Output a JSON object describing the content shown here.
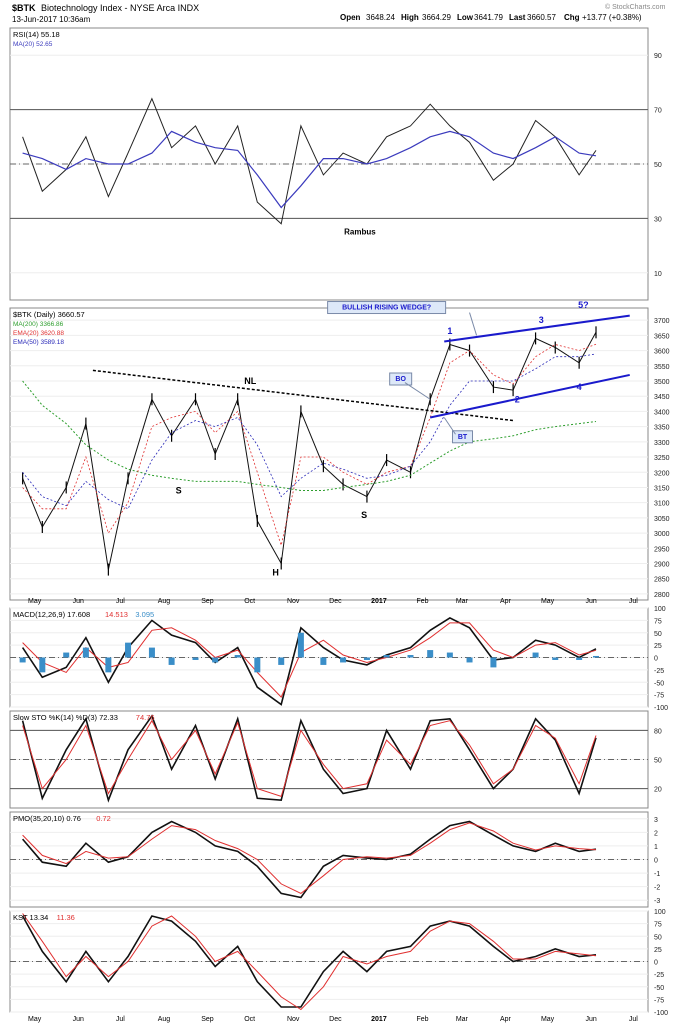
{
  "header": {
    "symbol": "$BTK",
    "name": "Biotechnology Index - NYSE Arca INDX",
    "date": "13-Jun-2017 10:36am",
    "open_label": "Open",
    "open": "3648.24",
    "high_label": "High",
    "high": "3664.29",
    "low_label": "Low",
    "low": "3641.79",
    "close_label": "Last",
    "close": "3660.57",
    "chg_label": "Chg",
    "chg": "+13.77 (+0.38%)",
    "watermark": "© StockCharts.com"
  },
  "colors": {
    "price": "#000000",
    "ma200": "#2e9e2e",
    "ema20": "#e03030",
    "ema50": "#2a2ab8",
    "rsi_ma": "#3b3bbd",
    "macd_hist": "#3a8ec8",
    "annot_blue": "#1a1acc"
  },
  "chart_data": [
    {
      "type": "line",
      "panel": "rsi",
      "legend": [
        "RSI(14) 55.18",
        "MA(20) 52.65"
      ],
      "ylim": [
        0,
        100
      ],
      "ticks": [
        10,
        30,
        50,
        70,
        90
      ],
      "ref_lines": [
        70,
        50,
        30
      ],
      "x": [
        "2016-05-01",
        "2016-05-15",
        "2016-06-01",
        "2016-06-15",
        "2016-07-01",
        "2016-07-15",
        "2016-08-01",
        "2016-08-15",
        "2016-09-01",
        "2016-09-15",
        "2016-10-01",
        "2016-10-15",
        "2016-11-01",
        "2016-11-15",
        "2016-12-01",
        "2016-12-15",
        "2017-01-01",
        "2017-01-15",
        "2017-02-01",
        "2017-02-15",
        "2017-03-01",
        "2017-03-15",
        "2017-04-01",
        "2017-04-15",
        "2017-05-01",
        "2017-05-15",
        "2017-06-01",
        "2017-06-13"
      ],
      "series": [
        {
          "name": "RSI(14)",
          "values": [
            60,
            40,
            48,
            60,
            38,
            54,
            74,
            56,
            64,
            50,
            64,
            36,
            28,
            64,
            46,
            54,
            50,
            60,
            64,
            72,
            64,
            58,
            44,
            50,
            66,
            60,
            46,
            55
          ]
        },
        {
          "name": "MA(20)",
          "values": [
            54,
            52,
            48,
            52,
            50,
            50,
            54,
            62,
            58,
            56,
            55,
            46,
            34,
            42,
            52,
            52,
            50,
            52,
            56,
            60,
            62,
            60,
            54,
            52,
            56,
            60,
            54,
            53
          ]
        }
      ],
      "annotation": "Rambus"
    },
    {
      "type": "line",
      "panel": "price",
      "legend": [
        "$BTK (Daily) 3660.57",
        "MA(200) 3366.86",
        "EMA(20) 3620.88",
        "EMA(50) 3589.18"
      ],
      "ylim": [
        2780,
        3740
      ],
      "ticks": [
        2800,
        2850,
        2900,
        2950,
        3000,
        3050,
        3100,
        3150,
        3200,
        3250,
        3300,
        3350,
        3400,
        3450,
        3500,
        3550,
        3600,
        3650,
        3700
      ],
      "x": [
        "2016-05-01",
        "2016-05-15",
        "2016-06-01",
        "2016-06-15",
        "2016-07-01",
        "2016-07-15",
        "2016-08-01",
        "2016-08-15",
        "2016-09-01",
        "2016-09-15",
        "2016-10-01",
        "2016-10-15",
        "2016-11-01",
        "2016-11-15",
        "2016-12-01",
        "2016-12-15",
        "2017-01-01",
        "2017-01-15",
        "2017-02-01",
        "2017-02-15",
        "2017-03-01",
        "2017-03-15",
        "2017-04-01",
        "2017-04-15",
        "2017-05-01",
        "2017-05-15",
        "2017-06-01",
        "2017-06-13"
      ],
      "series": [
        {
          "name": "$BTK (Daily)",
          "values": [
            3180,
            3020,
            3150,
            3360,
            2880,
            3180,
            3440,
            3320,
            3440,
            3260,
            3440,
            3040,
            2900,
            3400,
            3220,
            3160,
            3120,
            3240,
            3200,
            3440,
            3620,
            3600,
            3480,
            3470,
            3640,
            3610,
            3560,
            3660
          ]
        },
        {
          "name": "MA(200)",
          "values": [
            3500,
            3420,
            3360,
            3290,
            3240,
            3210,
            3190,
            3180,
            3170,
            3170,
            3170,
            3160,
            3150,
            3140,
            3140,
            3150,
            3160,
            3170,
            3190,
            3230,
            3270,
            3300,
            3310,
            3320,
            3340,
            3350,
            3360,
            3367
          ]
        },
        {
          "name": "EMA(20)",
          "values": [
            3150,
            3080,
            3080,
            3250,
            3000,
            3100,
            3350,
            3380,
            3400,
            3330,
            3400,
            3200,
            2960,
            3250,
            3250,
            3200,
            3160,
            3200,
            3220,
            3380,
            3560,
            3600,
            3520,
            3490,
            3580,
            3620,
            3600,
            3621
          ]
        },
        {
          "name": "EMA(50)",
          "values": [
            3200,
            3120,
            3090,
            3170,
            3110,
            3080,
            3240,
            3330,
            3370,
            3350,
            3380,
            3290,
            3120,
            3180,
            3230,
            3210,
            3180,
            3190,
            3220,
            3300,
            3420,
            3500,
            3500,
            3500,
            3540,
            3580,
            3580,
            3589
          ]
        }
      ],
      "annotations": {
        "nl": "NL",
        "left_s": "S",
        "head": "H",
        "right_s": "S",
        "wedge": "BULLISH RISING WEDGE?",
        "bo": "BO",
        "bt": "BT",
        "p1": "1",
        "p2": "2",
        "p3": "3",
        "p4": "4",
        "p5": "5?"
      }
    },
    {
      "type": "line",
      "panel": "macd",
      "legend": [
        "MACD(12,26,9) 17.608",
        "14.513",
        "3.095"
      ],
      "ylim": [
        -100,
        100
      ],
      "ticks": [
        100,
        75,
        50,
        25,
        0,
        -25,
        -50,
        -75,
        -100
      ],
      "x": [
        "2016-05-01",
        "2016-05-15",
        "2016-06-01",
        "2016-06-15",
        "2016-07-01",
        "2016-07-15",
        "2016-08-01",
        "2016-08-15",
        "2016-09-01",
        "2016-09-15",
        "2016-10-01",
        "2016-10-15",
        "2016-11-01",
        "2016-11-15",
        "2016-12-01",
        "2016-12-15",
        "2017-01-01",
        "2017-01-15",
        "2017-02-01",
        "2017-02-15",
        "2017-03-01",
        "2017-03-15",
        "2017-04-01",
        "2017-04-15",
        "2017-05-01",
        "2017-05-15",
        "2017-06-01",
        "2017-06-13"
      ],
      "series": [
        {
          "name": "MACD",
          "values": [
            20,
            -40,
            -20,
            40,
            -50,
            20,
            75,
            45,
            30,
            -10,
            20,
            -60,
            -95,
            60,
            20,
            -5,
            -15,
            5,
            20,
            55,
            80,
            60,
            -5,
            0,
            35,
            25,
            0,
            17.6
          ]
        },
        {
          "name": "Signal",
          "values": [
            30,
            -10,
            -30,
            20,
            -20,
            -10,
            55,
            60,
            35,
            0,
            15,
            -30,
            -80,
            10,
            35,
            5,
            -10,
            0,
            15,
            40,
            70,
            70,
            15,
            0,
            25,
            30,
            5,
            14.5
          ]
        },
        {
          "name": "Histogram",
          "values": [
            -10,
            -30,
            10,
            20,
            -30,
            30,
            20,
            -15,
            -5,
            -10,
            5,
            -30,
            -15,
            50,
            -15,
            -10,
            -5,
            5,
            5,
            15,
            10,
            -10,
            -20,
            0,
            10,
            -5,
            -5,
            3.1
          ]
        }
      ]
    },
    {
      "type": "line",
      "panel": "stochastic",
      "legend": [
        "Slow STO %K(14) %D(3) 72.33",
        "74.76"
      ],
      "ylim": [
        0,
        100
      ],
      "ticks": [
        80,
        50,
        20
      ],
      "ref_lines": [
        80,
        50,
        20
      ],
      "x": [
        "2016-05-01",
        "2016-05-15",
        "2016-06-01",
        "2016-06-15",
        "2016-07-01",
        "2016-07-15",
        "2016-08-01",
        "2016-08-15",
        "2016-09-01",
        "2016-09-15",
        "2016-10-01",
        "2016-10-15",
        "2016-11-01",
        "2016-11-15",
        "2016-12-01",
        "2016-12-15",
        "2017-01-01",
        "2017-01-15",
        "2017-02-01",
        "2017-02-15",
        "2017-03-01",
        "2017-03-15",
        "2017-04-01",
        "2017-04-15",
        "2017-05-01",
        "2017-05-15",
        "2017-06-01",
        "2017-06-13"
      ],
      "series": [
        {
          "name": "%K",
          "values": [
            90,
            10,
            60,
            92,
            8,
            60,
            95,
            40,
            85,
            30,
            92,
            10,
            8,
            90,
            40,
            15,
            20,
            80,
            40,
            90,
            92,
            60,
            20,
            40,
            92,
            70,
            15,
            72.33
          ]
        },
        {
          "name": "%D",
          "values": [
            85,
            20,
            50,
            85,
            15,
            50,
            90,
            50,
            80,
            35,
            88,
            20,
            12,
            80,
            45,
            20,
            25,
            70,
            45,
            85,
            90,
            65,
            25,
            40,
            85,
            72,
            25,
            74.76
          ]
        }
      ]
    },
    {
      "type": "line",
      "panel": "pmo",
      "legend": [
        "PMO(35,20,10) 0.76",
        "0.72"
      ],
      "ylim": [
        -3.5,
        3.5
      ],
      "ticks": [
        3,
        2,
        1,
        0,
        -1,
        -2,
        -3
      ],
      "x": [
        "2016-05-01",
        "2016-05-15",
        "2016-06-01",
        "2016-06-15",
        "2016-07-01",
        "2016-07-15",
        "2016-08-01",
        "2016-08-15",
        "2016-09-01",
        "2016-09-15",
        "2016-10-01",
        "2016-10-15",
        "2016-11-01",
        "2016-11-15",
        "2016-12-01",
        "2016-12-15",
        "2017-01-01",
        "2017-01-15",
        "2017-02-01",
        "2017-02-15",
        "2017-03-01",
        "2017-03-15",
        "2017-04-01",
        "2017-04-15",
        "2017-05-01",
        "2017-05-15",
        "2017-06-01",
        "2017-06-13"
      ],
      "series": [
        {
          "name": "PMO",
          "values": [
            1.5,
            -0.2,
            -0.5,
            1.2,
            -0.2,
            0.2,
            2.0,
            2.8,
            2.0,
            1.0,
            0.6,
            -0.5,
            -2.5,
            -2.8,
            -0.5,
            0.3,
            0.1,
            0.0,
            0.4,
            1.5,
            2.5,
            2.8,
            1.8,
            1.0,
            0.6,
            1.2,
            0.6,
            0.76
          ]
        },
        {
          "name": "Signal",
          "values": [
            1.8,
            0.3,
            -0.3,
            0.6,
            0.1,
            0.2,
            1.5,
            2.5,
            2.2,
            1.4,
            0.8,
            0.0,
            -1.8,
            -2.5,
            -1.2,
            0.0,
            0.2,
            0.1,
            0.3,
            1.2,
            2.2,
            2.7,
            2.1,
            1.2,
            0.7,
            1.0,
            0.8,
            0.72
          ]
        }
      ]
    },
    {
      "type": "line",
      "panel": "kst",
      "legend": [
        "KST 13.34",
        "11.36"
      ],
      "ylim": [
        -100,
        100
      ],
      "ticks": [
        100,
        75,
        50,
        25,
        0,
        -25,
        -50,
        -75,
        -100
      ],
      "x": [
        "2016-05-01",
        "2016-05-15",
        "2016-06-01",
        "2016-06-15",
        "2016-07-01",
        "2016-07-15",
        "2016-08-01",
        "2016-08-15",
        "2016-09-01",
        "2016-09-15",
        "2016-10-01",
        "2016-10-15",
        "2016-11-01",
        "2016-11-15",
        "2016-12-01",
        "2016-12-15",
        "2017-01-01",
        "2017-01-15",
        "2017-02-01",
        "2017-02-15",
        "2017-03-01",
        "2017-03-15",
        "2017-04-01",
        "2017-04-15",
        "2017-05-01",
        "2017-05-15",
        "2017-06-01",
        "2017-06-13"
      ],
      "series": [
        {
          "name": "KST",
          "values": [
            90,
            20,
            -40,
            20,
            -40,
            10,
            90,
            80,
            40,
            -10,
            30,
            -40,
            -90,
            -90,
            -20,
            20,
            -20,
            20,
            30,
            70,
            80,
            70,
            30,
            0,
            10,
            25,
            10,
            13.34
          ]
        },
        {
          "name": "Signal",
          "values": [
            95,
            40,
            -30,
            10,
            -30,
            0,
            70,
            90,
            50,
            0,
            20,
            -20,
            -70,
            -95,
            -50,
            10,
            -5,
            10,
            20,
            60,
            80,
            75,
            40,
            5,
            5,
            20,
            15,
            11.36
          ]
        }
      ]
    }
  ],
  "x_axis_labels": [
    "May",
    "Jun",
    "Jul",
    "Aug",
    "Sep",
    "Oct",
    "Nov",
    "Dec",
    "2017",
    "Feb",
    "Mar",
    "Apr",
    "May",
    "Jun",
    "Jul"
  ]
}
